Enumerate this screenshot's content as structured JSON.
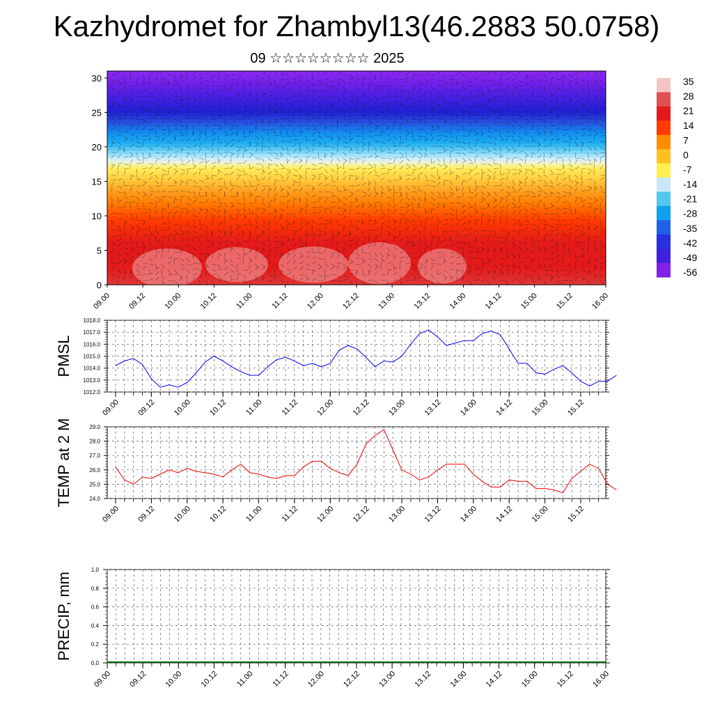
{
  "page": {
    "title": "Kazhydromet for Zhambyl13(46.2883 50.0758)",
    "subtitle": "09 ☆☆☆☆☆☆☆☆ 2025"
  },
  "chart_data": [
    {
      "type": "heatmap",
      "description_free": true,
      "title": "",
      "xlabel": "",
      "ylabel": "",
      "x_tick_labels": [
        "09.00",
        "09.12",
        "10.00",
        "10.12",
        "11.00",
        "11.12",
        "12.00",
        "12.12",
        "13.00",
        "13.12",
        "14.00",
        "14.12",
        "15.00",
        "15.12",
        "16.00"
      ],
      "ylim": [
        0,
        31
      ],
      "y_ticks": [
        0,
        5,
        10,
        15,
        20,
        25,
        30
      ],
      "colorbar": {
        "labels": [
          35,
          28,
          21,
          14,
          7,
          0,
          -7,
          -14,
          -21,
          -28,
          -35,
          -42,
          -49,
          -56
        ],
        "colors": [
          "#f4c4c4",
          "#e05050",
          "#e41a1a",
          "#ff3a00",
          "#ff8c00",
          "#ffc020",
          "#fff050",
          "#c8e8f8",
          "#50c8f0",
          "#10a0f0",
          "#2060e8",
          "#2830e0",
          "#4020e0",
          "#8020e8"
        ]
      },
      "overlay": "wind-barbs"
    },
    {
      "type": "line",
      "ylabel": "PMSL",
      "ylim": [
        1012.0,
        1018.0
      ],
      "y_ticks": [
        "1012.0",
        "1013.0",
        "1014.0",
        "1015.0",
        "1016.0",
        "1017.0",
        "1018.0"
      ],
      "x_tick_labels": [
        "09.00",
        "09.12",
        "10.00",
        "10.12",
        "11.00",
        "11.12",
        "12.00",
        "12.12",
        "13.00",
        "13.12",
        "14.00",
        "14.12",
        "15.00",
        "15.12",
        "16.00"
      ],
      "color": "#0000ee",
      "values": [
        1014.2,
        1014.6,
        1014.8,
        1014.3,
        1013.1,
        1012.4,
        1012.6,
        1012.4,
        1012.8,
        1013.6,
        1014.5,
        1015.0,
        1014.6,
        1014.1,
        1013.7,
        1013.4,
        1013.4,
        1014.1,
        1014.7,
        1014.9,
        1014.6,
        1014.2,
        1014.4,
        1014.1,
        1014.4,
        1015.5,
        1015.9,
        1015.6,
        1014.9,
        1014.1,
        1014.6,
        1014.5,
        1015.0,
        1016.0,
        1016.9,
        1017.2,
        1016.6,
        1015.9,
        1016.1,
        1016.3,
        1016.3,
        1016.9,
        1017.1,
        1016.8,
        1015.6,
        1014.4,
        1014.4,
        1013.6,
        1013.5,
        1013.9,
        1014.2,
        1013.6,
        1012.9,
        1012.5,
        1012.9,
        1012.9,
        1013.4
      ]
    },
    {
      "type": "line",
      "ylabel": "TEMP at 2 M",
      "ylim": [
        24.0,
        29.0
      ],
      "y_ticks": [
        "24.0",
        "25.0",
        "26.0",
        "27.0",
        "28.0",
        "29.0"
      ],
      "x_tick_labels": [
        "09.00",
        "09.12",
        "10.00",
        "10.12",
        "11.00",
        "11.12",
        "12.00",
        "12.12",
        "13.00",
        "13.12",
        "14.00",
        "14.12",
        "15.00",
        "15.12",
        "16.00"
      ],
      "color": "#ee0000",
      "values": [
        26.2,
        25.3,
        25.0,
        25.5,
        25.4,
        25.7,
        26.0,
        25.8,
        26.1,
        25.9,
        25.8,
        25.7,
        25.5,
        26.0,
        26.4,
        25.8,
        25.7,
        25.5,
        25.4,
        25.6,
        25.6,
        26.2,
        26.6,
        26.6,
        26.1,
        25.8,
        25.6,
        26.4,
        27.8,
        28.4,
        28.8,
        27.4,
        26.0,
        25.7,
        25.3,
        25.5,
        26.0,
        26.4,
        26.4,
        26.4,
        25.7,
        25.2,
        24.8,
        24.8,
        25.3,
        25.2,
        25.2,
        24.7,
        24.7,
        24.6,
        24.4,
        25.4,
        25.9,
        26.4,
        26.1,
        25.0,
        24.6
      ]
    },
    {
      "type": "bar",
      "ylabel": "PRECIP, mm",
      "ylim": [
        0.0,
        1.0
      ],
      "y_ticks": [
        "0.0",
        "0.2",
        "0.4",
        "0.6",
        "0.8",
        "1.0"
      ],
      "x_tick_labels": [
        "09.00",
        "09.12",
        "10.00",
        "10.12",
        "11.00",
        "11.12",
        "12.00",
        "12.12",
        "13.00",
        "13.12",
        "14.00",
        "14.12",
        "15.00",
        "15.12",
        "16.00"
      ],
      "color": "#006400",
      "values": [
        0,
        0,
        0,
        0,
        0,
        0,
        0,
        0,
        0,
        0,
        0,
        0,
        0,
        0,
        0,
        0,
        0,
        0,
        0,
        0,
        0,
        0,
        0,
        0,
        0,
        0,
        0,
        0,
        0,
        0,
        0,
        0,
        0,
        0,
        0,
        0,
        0,
        0,
        0,
        0,
        0,
        0,
        0,
        0,
        0,
        0,
        0,
        0,
        0,
        0,
        0,
        0,
        0,
        0,
        0,
        0,
        0
      ]
    }
  ]
}
